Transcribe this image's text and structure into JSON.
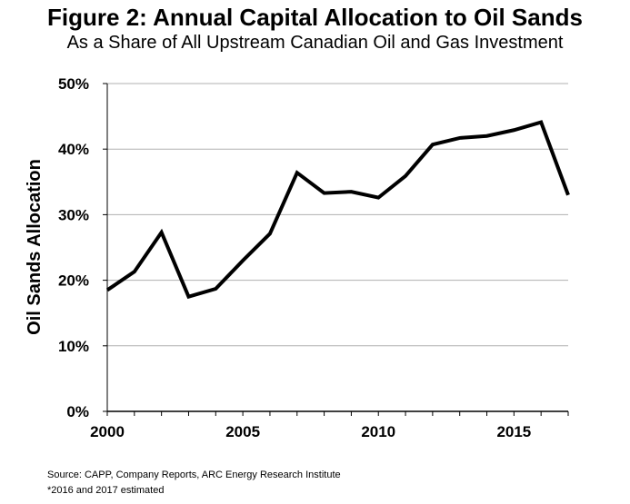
{
  "chart_data": {
    "type": "line",
    "title": "Figure 2: Annual Capital Allocation to Oil Sands",
    "subtitle": "As a Share of All Upstream Canadian Oil and Gas Investment",
    "xlabel": "",
    "ylabel": "Oil Sands Allocation",
    "x": [
      2000,
      2001,
      2002,
      2003,
      2004,
      2005,
      2006,
      2007,
      2008,
      2009,
      2010,
      2011,
      2012,
      2013,
      2014,
      2015,
      2016,
      2017
    ],
    "series": [
      {
        "name": "",
        "values": [
          18.5,
          21.3,
          27.3,
          17.5,
          18.7,
          23.0,
          27.1,
          36.4,
          33.3,
          33.5,
          32.6,
          35.9,
          40.7,
          41.7,
          42.0,
          42.9,
          44.1,
          33.0
        ]
      }
    ],
    "xlim": [
      2000,
      2017
    ],
    "ylim": [
      0,
      50
    ],
    "x_ticks": [
      "2000",
      "2005",
      "2010",
      "2015"
    ],
    "y_ticks": [
      "0%",
      "10%",
      "20%",
      "30%",
      "40%",
      "50%"
    ],
    "grid": "horizontal",
    "legend": "none",
    "line_color": "#000000"
  },
  "footnotes": {
    "source": "Source: CAPP, Company Reports, ARC Energy Research Institute",
    "note": "*2016 and 2017 estimated"
  }
}
